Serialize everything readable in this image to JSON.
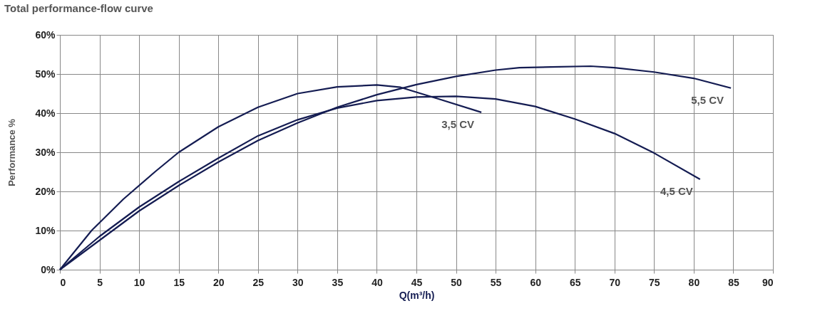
{
  "chart_data": {
    "type": "line",
    "title": "Total performance-flow curve",
    "xlabel": "Q(m³/h)",
    "ylabel": "Performance  %",
    "xlim": [
      0,
      90
    ],
    "xticks": [
      0,
      5,
      10,
      15,
      20,
      25,
      30,
      35,
      40,
      45,
      50,
      55,
      60,
      65,
      70,
      75,
      80,
      85,
      90
    ],
    "ylim": [
      0,
      60
    ],
    "yticks": [
      {
        "value": 0,
        "label": "0%"
      },
      {
        "value": 10,
        "label": "10%"
      },
      {
        "value": 20,
        "label": "20%"
      },
      {
        "value": 30,
        "label": "30%"
      },
      {
        "value": 40,
        "label": "40%"
      },
      {
        "value": 50,
        "label": "50%"
      },
      {
        "value": 60,
        "label": "60%"
      }
    ],
    "grid": true,
    "legend": false,
    "marker": "none",
    "line_style": "solid",
    "series": [
      {
        "name": "3,5 CV",
        "color": "#141c52",
        "x": [
          0,
          4,
          8,
          12,
          15,
          20,
          25,
          30,
          35,
          40,
          43,
          48,
          53.2
        ],
        "values": [
          0,
          10,
          18,
          25,
          30,
          36.5,
          41.5,
          45,
          46.7,
          47.2,
          46.6,
          43.5,
          40.2
        ]
      },
      {
        "name": "4,5 CV",
        "color": "#141c52",
        "x": [
          0,
          5,
          10,
          15,
          20,
          25,
          30,
          35,
          40,
          45,
          50,
          55,
          60,
          65,
          70,
          75,
          80.8
        ],
        "values": [
          0,
          8.5,
          16,
          22.5,
          28.5,
          34.2,
          38.3,
          41.3,
          43.2,
          44.1,
          44.3,
          43.6,
          41.7,
          38.5,
          34.8,
          29.8,
          23.1
        ]
      },
      {
        "name": "5,5 CV",
        "color": "#141c52",
        "x": [
          0,
          5,
          10,
          15,
          20,
          25,
          30,
          35,
          40,
          45,
          50,
          55,
          58,
          62,
          67,
          70,
          75,
          80,
          84.7
        ],
        "values": [
          0,
          7.5,
          15,
          21.5,
          27.5,
          33,
          37.5,
          41.5,
          44.7,
          47.3,
          49.4,
          51,
          51.6,
          51.8,
          52,
          51.6,
          50.5,
          48.9,
          46.4
        ]
      }
    ]
  }
}
